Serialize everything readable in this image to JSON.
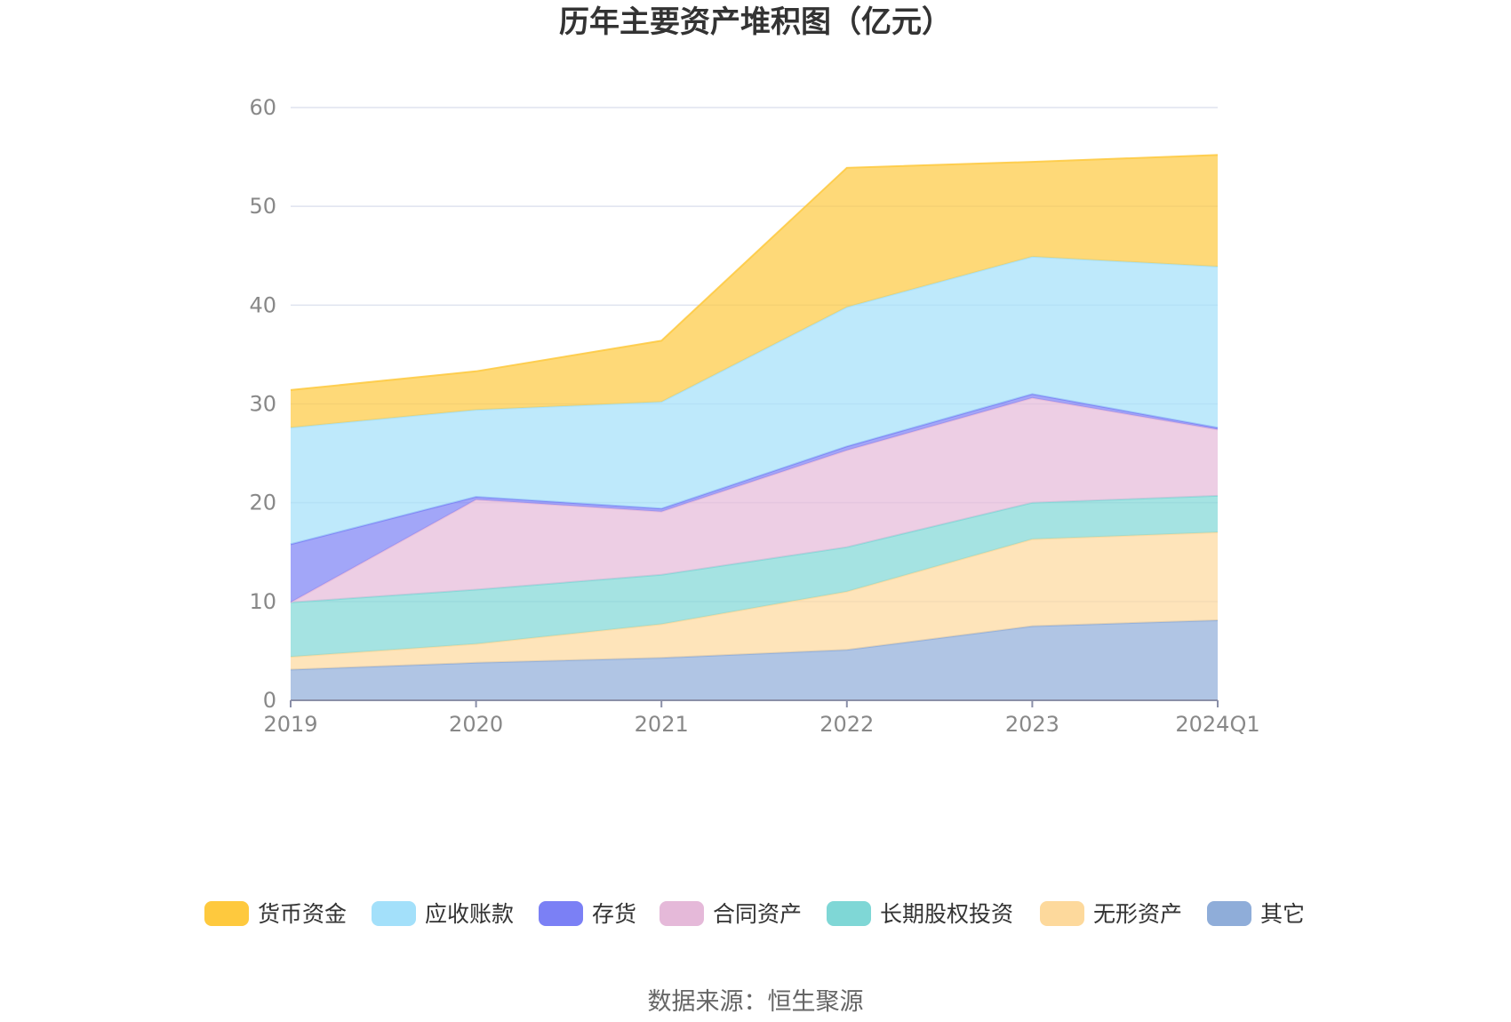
{
  "chart_data": {
    "type": "area",
    "title": "历年主要资产堆积图（亿元）",
    "source": "数据来源：恒生聚源",
    "categories": [
      "2019",
      "2020",
      "2021",
      "2022",
      "2023",
      "2024Q1"
    ],
    "ylim": [
      0,
      60
    ],
    "yticks": [
      0,
      10,
      20,
      30,
      40,
      50,
      60
    ],
    "grid": true,
    "legend_position": "bottom",
    "stacked": true,
    "series": [
      {
        "name": "其它",
        "color": "#8fadd9",
        "values": [
          3.1,
          3.8,
          4.3,
          5.1,
          7.5,
          8.1
        ]
      },
      {
        "name": "无形资产",
        "color": "#fdd99c",
        "values": [
          1.3,
          1.9,
          3.4,
          5.9,
          8.8,
          8.9
        ]
      },
      {
        "name": "长期股权投资",
        "color": "#7fd7d6",
        "values": [
          5.5,
          5.5,
          5.0,
          4.5,
          3.7,
          3.7
        ]
      },
      {
        "name": "合同资产",
        "color": "#e5b9d9",
        "values": [
          0.0,
          9.1,
          6.4,
          9.8,
          10.6,
          6.7
        ]
      },
      {
        "name": "存货",
        "color": "#7b80f5",
        "values": [
          5.9,
          0.3,
          0.3,
          0.4,
          0.4,
          0.2
        ]
      },
      {
        "name": "应收账款",
        "color": "#a3e0fa",
        "values": [
          11.8,
          8.8,
          10.8,
          14.1,
          13.9,
          16.3
        ]
      },
      {
        "name": "货币资金",
        "color": "#fec93e",
        "values": [
          3.8,
          3.9,
          6.2,
          14.1,
          9.6,
          11.3
        ]
      }
    ],
    "legend_order": [
      "货币资金",
      "应收账款",
      "存货",
      "合同资产",
      "长期股权投资",
      "无形资产",
      "其它"
    ]
  }
}
